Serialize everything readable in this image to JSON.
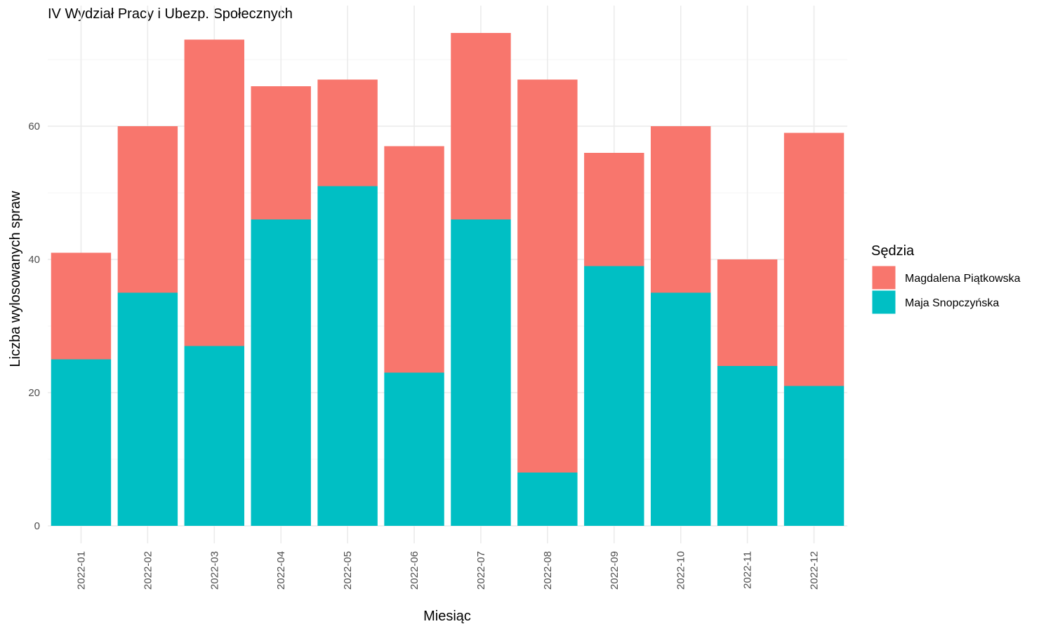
{
  "chart_data": {
    "type": "bar",
    "stacked": true,
    "title": "IV Wydział Pracy i Ubezp. Społecznych",
    "xlabel": "Miesiąc",
    "ylabel": "Liczba wylosowanych spraw",
    "categories": [
      "2022-01",
      "2022-02",
      "2022-03",
      "2022-04",
      "2022-05",
      "2022-06",
      "2022-07",
      "2022-08",
      "2022-09",
      "2022-10",
      "2022-11",
      "2022-12"
    ],
    "series": [
      {
        "name": "Maja Snopczyńska",
        "color": "#00BFC4",
        "values": [
          25,
          35,
          27,
          46,
          51,
          23,
          46,
          8,
          39,
          35,
          24,
          21
        ]
      },
      {
        "name": "Magdalena Piątkowska",
        "color": "#F8766D",
        "values": [
          16,
          25,
          46,
          20,
          16,
          34,
          28,
          59,
          17,
          25,
          16,
          38
        ]
      }
    ],
    "ylim": [
      0,
      75
    ],
    "yticks": [
      0,
      20,
      40,
      60
    ],
    "grid": true,
    "legend": {
      "title": "Sędzia",
      "placement": "right",
      "order": [
        "Magdalena Piątkowska",
        "Maja Snopczyńska"
      ]
    }
  }
}
